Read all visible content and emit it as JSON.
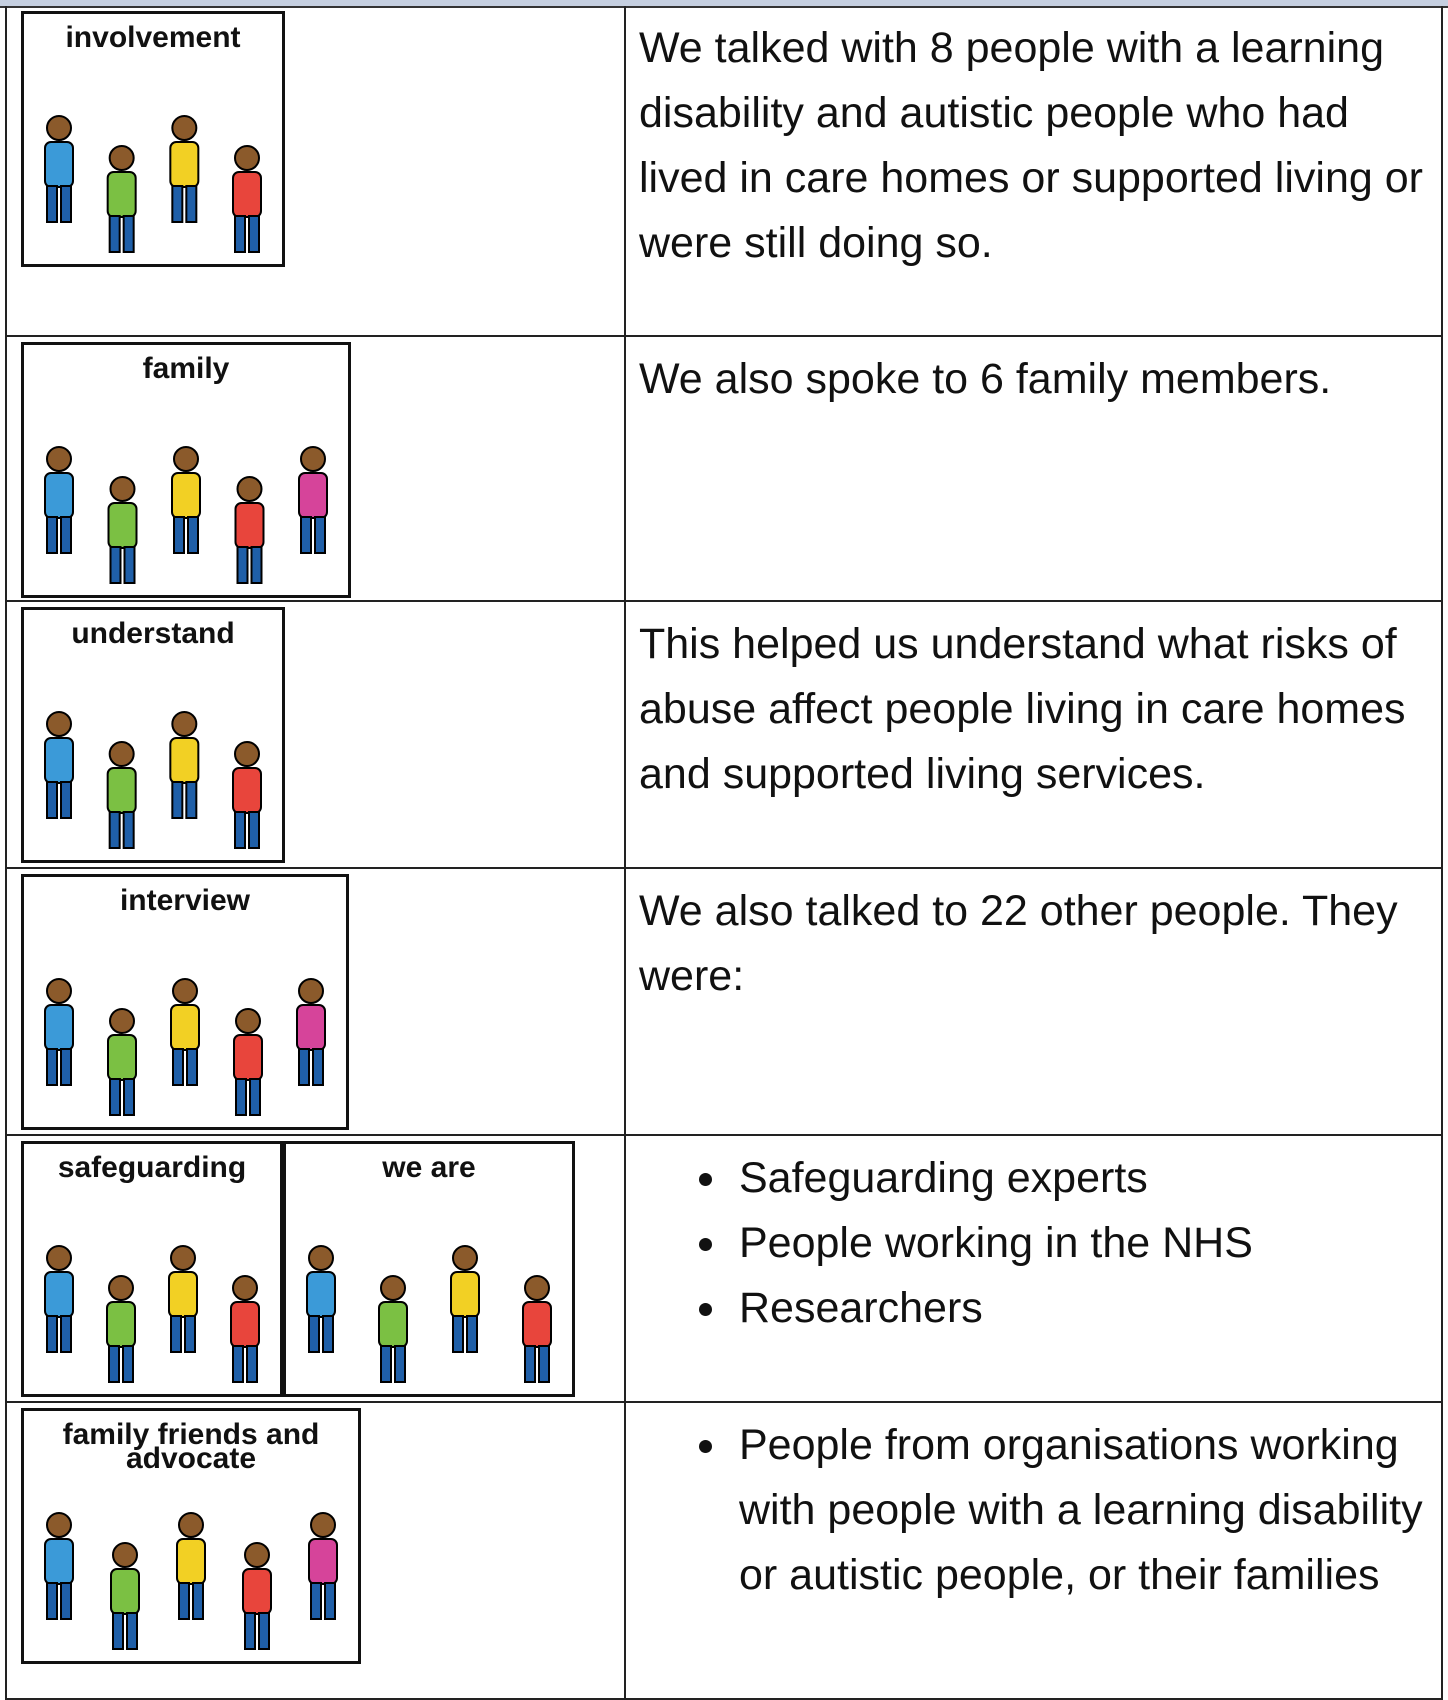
{
  "rows": [
    {
      "symbols": [
        "involvement"
      ],
      "text": "We talked with 8 people with a learning disability and autistic people who had lived in care homes or supported living or were still doing so."
    },
    {
      "symbols": [
        "family"
      ],
      "text": "We also spoke to 6 family members."
    },
    {
      "symbols": [
        "understand"
      ],
      "text": "This helped us understand what risks of abuse affect people living in care homes and supported living services."
    },
    {
      "symbols": [
        "interview"
      ],
      "text": "We also talked to 22 other people. They were:"
    },
    {
      "symbols": [
        "safeguarding",
        "we are"
      ],
      "bullets": [
        "Safeguarding experts",
        "People working in the NHS",
        "Researchers"
      ]
    },
    {
      "symbols": [
        "family friends and advocate"
      ],
      "bullets": [
        "People from organisations working with people with a learning disability or autistic people, or their families"
      ]
    }
  ]
}
